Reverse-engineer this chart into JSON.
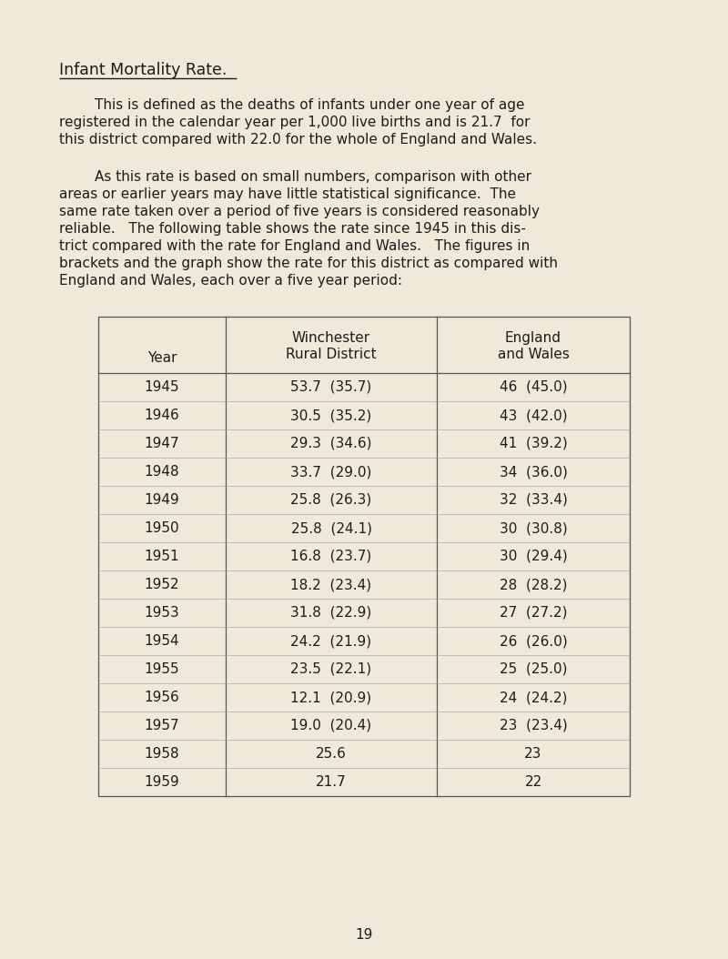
{
  "bg_color": "#eee9d8",
  "title": "Infant Mortality Rate.",
  "font_family": "Courier New",
  "title_fontsize": 12.5,
  "text_fontsize": 11.0,
  "small_fontsize": 10.5,
  "para1_lines": [
    "        This is defined as the deaths of infants under one year of age",
    "registered in the calendar year per 1,000 live births and is 21.7  for",
    "this district compared with 22.0 for the whole of England and Wales."
  ],
  "para2_lines": [
    "        As this rate is based on small numbers, comparison with other",
    "areas or earlier years may have little statistical significance.  The",
    "same rate taken over a period of five years is considered reasonably",
    "reliable.   The following table shows the rate since 1945 in this dis-",
    "trict compared with the rate for England and Wales.   The figures in",
    "brackets and the graph show the rate for this district as compared with",
    "England and Wales, each over a five year period:"
  ],
  "page_number": "19",
  "years": [
    1945,
    1946,
    1947,
    1948,
    1949,
    1950,
    1951,
    1952,
    1953,
    1954,
    1955,
    1956,
    1957,
    1958,
    1959
  ],
  "winchester_vals": [
    "53.7",
    "30.5",
    "29.3",
    "33.7",
    "25.8",
    "25.8",
    "16.8",
    "18.2",
    "31.8",
    "24.2",
    "23.5",
    "12.1",
    "19.0",
    "25.6",
    "21.7"
  ],
  "winchester_brackets": [
    "(35.7)",
    "(35.2)",
    "(34.6)",
    "(29.0)",
    "(26.3)",
    "(24.1)",
    "(23.7)",
    "(23.4)",
    "(22.9)",
    "(21.9)",
    "(22.1)",
    "(20.9)",
    "(20.4)",
    "",
    ""
  ],
  "england_vals": [
    "46",
    "43",
    "41",
    "34",
    "32",
    "30",
    "30",
    "28",
    "27",
    "26",
    "25",
    "24",
    "23",
    "23",
    "22"
  ],
  "england_brackets": [
    "(45.0)",
    "(42.0)",
    "(39.2)",
    "(36.0)",
    "(33.4)",
    "(30.8)",
    "(29.4)",
    "(28.2)",
    "(27.2)",
    "(26.0)",
    "(25.0)",
    "(24.2)",
    "(23.4)",
    "",
    ""
  ]
}
